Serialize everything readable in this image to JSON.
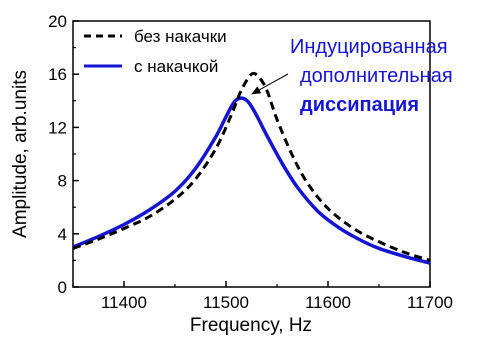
{
  "chart_data": {
    "type": "line",
    "xlabel": "Frequency, Hz",
    "ylabel": "Amplitude, arb.units",
    "xlim": [
      11350,
      11700
    ],
    "ylim": [
      0,
      20
    ],
    "xticks": [
      11400,
      11500,
      11600,
      11700
    ],
    "yticks": [
      0,
      4,
      8,
      12,
      16,
      20
    ],
    "legend_position": "top-left",
    "grid": false,
    "series": [
      {
        "name": "без накачки",
        "style": "dashed",
        "color": "#000000",
        "x": [
          11350,
          11375,
          11400,
          11425,
          11450,
          11470,
          11490,
          11505,
          11515,
          11525,
          11532,
          11540,
          11550,
          11565,
          11580,
          11600,
          11625,
          11650,
          11675,
          11700
        ],
        "y": [
          2.9,
          3.6,
          4.4,
          5.3,
          6.6,
          8.1,
          10.4,
          12.9,
          14.8,
          16.0,
          15.8,
          14.8,
          12.6,
          9.9,
          7.8,
          5.9,
          4.4,
          3.4,
          2.6,
          2.0
        ]
      },
      {
        "name": "с накачкой",
        "style": "solid",
        "color": "#1414d2",
        "x": [
          11350,
          11375,
          11400,
          11425,
          11450,
          11470,
          11490,
          11500,
          11508,
          11515,
          11522,
          11530,
          11540,
          11555,
          11570,
          11590,
          11610,
          11630,
          11650,
          11675,
          11700
        ],
        "y": [
          3.0,
          3.8,
          4.7,
          5.8,
          7.2,
          8.9,
          11.3,
          12.8,
          13.9,
          14.2,
          13.9,
          12.9,
          11.4,
          9.3,
          7.5,
          5.7,
          4.5,
          3.6,
          2.9,
          2.3,
          1.8
        ]
      }
    ],
    "annotation": {
      "lines": [
        "Индуцированная",
        "дополнительная",
        "диссипация"
      ],
      "bold_line": 2,
      "color": "#1414d2",
      "arrow_to": {
        "x": 11525,
        "y": 14.5
      }
    }
  }
}
